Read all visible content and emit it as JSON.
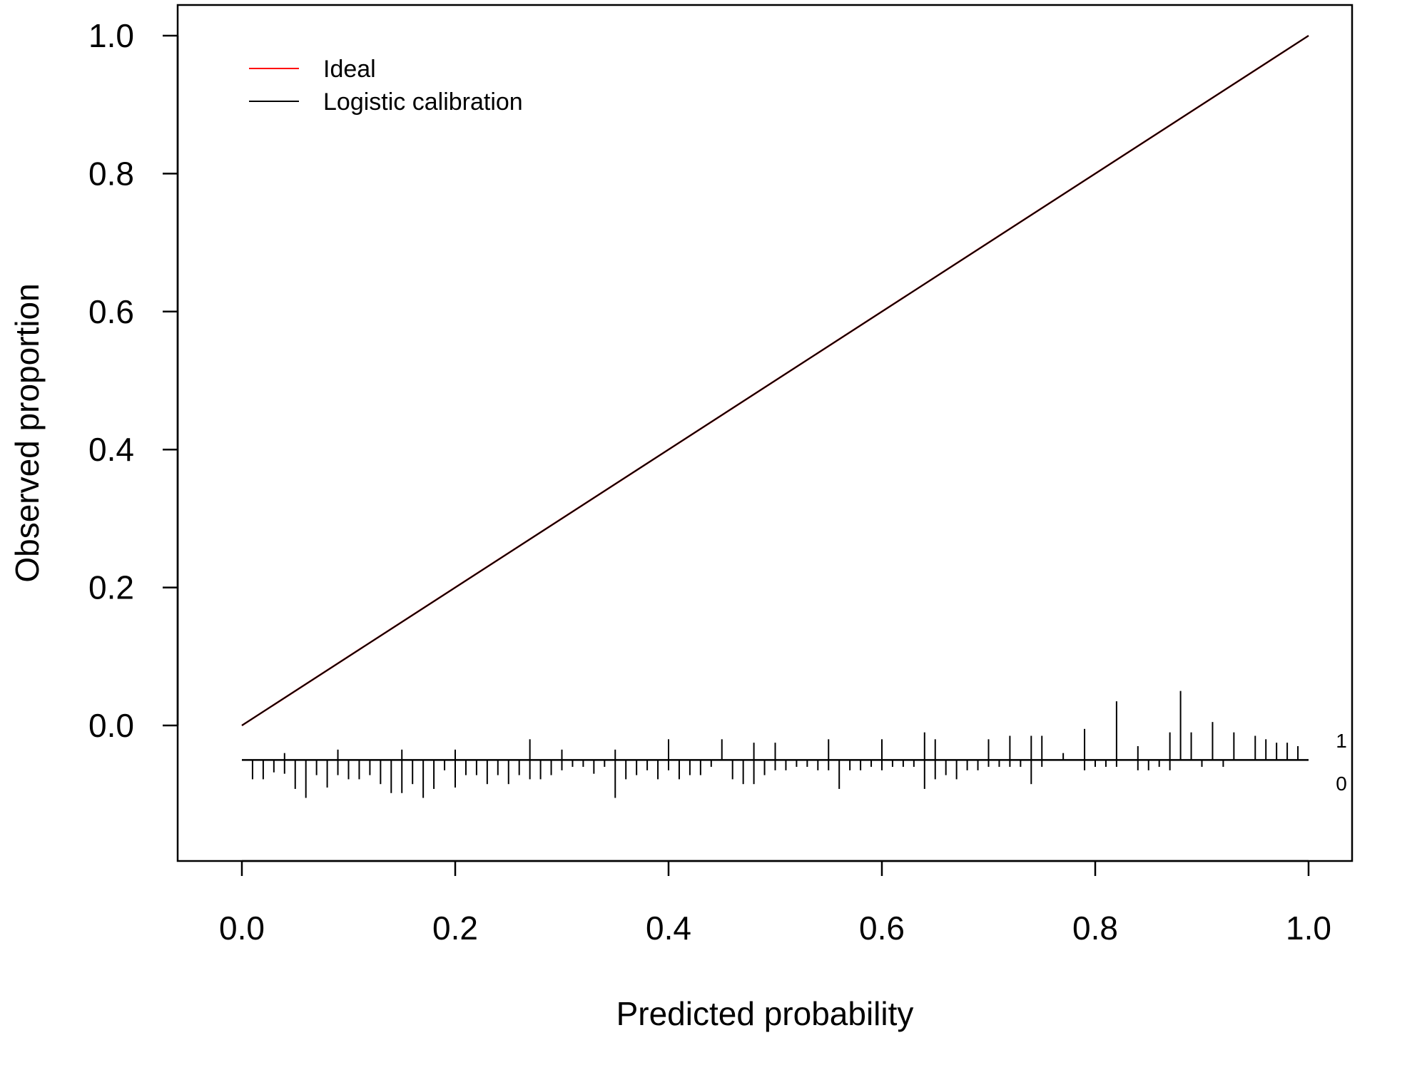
{
  "chart_data": {
    "type": "line",
    "title": "",
    "xlabel": "Predicted probability",
    "ylabel": "Observed proportion",
    "xlim": [
      0.0,
      1.0
    ],
    "ylim": [
      -0.2,
      1.0
    ],
    "x_ticks": [
      "0.0",
      "0.2",
      "0.4",
      "0.6",
      "0.8",
      "1.0"
    ],
    "y_ticks": [
      "0.0",
      "0.2",
      "0.4",
      "0.6",
      "0.8",
      "1.0"
    ],
    "grid": false,
    "legend_position": "top-left",
    "series": [
      {
        "name": "Ideal",
        "color": "#ff0000",
        "x": [
          0,
          1
        ],
        "y": [
          0,
          1
        ]
      },
      {
        "name": "Logistic calibration",
        "color": "#000000",
        "x": [
          0,
          1
        ],
        "y": [
          0,
          1
        ]
      }
    ],
    "rug": {
      "baseline": -0.05,
      "labels": [
        "1",
        "0"
      ],
      "events": [
        {
          "x": 0.27,
          "h": 0.03
        },
        {
          "x": 0.4,
          "h": 0.03
        },
        {
          "x": 0.45,
          "h": 0.03
        },
        {
          "x": 0.64,
          "h": 0.04
        },
        {
          "x": 0.72,
          "h": 0.035
        },
        {
          "x": 0.74,
          "h": 0.035
        },
        {
          "x": 0.75,
          "h": 0.035
        },
        {
          "x": 0.79,
          "h": 0.045
        },
        {
          "x": 0.82,
          "h": 0.085
        },
        {
          "x": 0.87,
          "h": 0.04
        },
        {
          "x": 0.88,
          "h": 0.1
        },
        {
          "x": 0.89,
          "h": 0.04
        },
        {
          "x": 0.91,
          "h": 0.055
        },
        {
          "x": 0.93,
          "h": 0.04
        },
        {
          "x": 0.95,
          "h": 0.035
        },
        {
          "x": 0.96,
          "h": 0.03
        },
        {
          "x": 0.97,
          "h": 0.025
        },
        {
          "x": 0.98,
          "h": 0.025
        },
        {
          "x": 0.99,
          "h": 0.02
        },
        {
          "x": 0.7,
          "h": 0.03
        },
        {
          "x": 0.65,
          "h": 0.03
        },
        {
          "x": 0.6,
          "h": 0.03
        },
        {
          "x": 0.55,
          "h": 0.03
        },
        {
          "x": 0.5,
          "h": 0.025
        },
        {
          "x": 0.48,
          "h": 0.025
        },
        {
          "x": 0.35,
          "h": 0.015
        },
        {
          "x": 0.3,
          "h": 0.015
        },
        {
          "x": 0.2,
          "h": 0.015
        },
        {
          "x": 0.15,
          "h": 0.015
        },
        {
          "x": 0.09,
          "h": 0.015
        },
        {
          "x": 0.04,
          "h": 0.01
        },
        {
          "x": 0.77,
          "h": 0.01
        },
        {
          "x": 0.84,
          "h": 0.02
        }
      ],
      "non_events": [
        {
          "x": 0.01,
          "h": 0.028
        },
        {
          "x": 0.02,
          "h": 0.028
        },
        {
          "x": 0.03,
          "h": 0.018
        },
        {
          "x": 0.04,
          "h": 0.02
        },
        {
          "x": 0.05,
          "h": 0.042
        },
        {
          "x": 0.06,
          "h": 0.055
        },
        {
          "x": 0.07,
          "h": 0.022
        },
        {
          "x": 0.08,
          "h": 0.04
        },
        {
          "x": 0.09,
          "h": 0.022
        },
        {
          "x": 0.1,
          "h": 0.028
        },
        {
          "x": 0.11,
          "h": 0.028
        },
        {
          "x": 0.12,
          "h": 0.022
        },
        {
          "x": 0.13,
          "h": 0.035
        },
        {
          "x": 0.14,
          "h": 0.048
        },
        {
          "x": 0.15,
          "h": 0.048
        },
        {
          "x": 0.16,
          "h": 0.035
        },
        {
          "x": 0.17,
          "h": 0.055
        },
        {
          "x": 0.18,
          "h": 0.042
        },
        {
          "x": 0.19,
          "h": 0.015
        },
        {
          "x": 0.2,
          "h": 0.04
        },
        {
          "x": 0.21,
          "h": 0.022
        },
        {
          "x": 0.22,
          "h": 0.022
        },
        {
          "x": 0.23,
          "h": 0.035
        },
        {
          "x": 0.24,
          "h": 0.022
        },
        {
          "x": 0.25,
          "h": 0.035
        },
        {
          "x": 0.26,
          "h": 0.022
        },
        {
          "x": 0.27,
          "h": 0.028
        },
        {
          "x": 0.28,
          "h": 0.028
        },
        {
          "x": 0.29,
          "h": 0.022
        },
        {
          "x": 0.3,
          "h": 0.015
        },
        {
          "x": 0.31,
          "h": 0.01
        },
        {
          "x": 0.32,
          "h": 0.01
        },
        {
          "x": 0.33,
          "h": 0.02
        },
        {
          "x": 0.34,
          "h": 0.01
        },
        {
          "x": 0.35,
          "h": 0.055
        },
        {
          "x": 0.36,
          "h": 0.028
        },
        {
          "x": 0.37,
          "h": 0.022
        },
        {
          "x": 0.38,
          "h": 0.015
        },
        {
          "x": 0.39,
          "h": 0.028
        },
        {
          "x": 0.4,
          "h": 0.015
        },
        {
          "x": 0.41,
          "h": 0.028
        },
        {
          "x": 0.42,
          "h": 0.022
        },
        {
          "x": 0.43,
          "h": 0.022
        },
        {
          "x": 0.44,
          "h": 0.01
        },
        {
          "x": 0.46,
          "h": 0.028
        },
        {
          "x": 0.47,
          "h": 0.035
        },
        {
          "x": 0.48,
          "h": 0.035
        },
        {
          "x": 0.49,
          "h": 0.022
        },
        {
          "x": 0.5,
          "h": 0.015
        },
        {
          "x": 0.51,
          "h": 0.015
        },
        {
          "x": 0.52,
          "h": 0.01
        },
        {
          "x": 0.53,
          "h": 0.01
        },
        {
          "x": 0.54,
          "h": 0.015
        },
        {
          "x": 0.55,
          "h": 0.015
        },
        {
          "x": 0.56,
          "h": 0.042
        },
        {
          "x": 0.57,
          "h": 0.015
        },
        {
          "x": 0.58,
          "h": 0.015
        },
        {
          "x": 0.59,
          "h": 0.01
        },
        {
          "x": 0.6,
          "h": 0.015
        },
        {
          "x": 0.61,
          "h": 0.01
        },
        {
          "x": 0.62,
          "h": 0.01
        },
        {
          "x": 0.63,
          "h": 0.01
        },
        {
          "x": 0.64,
          "h": 0.042
        },
        {
          "x": 0.65,
          "h": 0.028
        },
        {
          "x": 0.66,
          "h": 0.022
        },
        {
          "x": 0.67,
          "h": 0.028
        },
        {
          "x": 0.68,
          "h": 0.015
        },
        {
          "x": 0.69,
          "h": 0.015
        },
        {
          "x": 0.7,
          "h": 0.01
        },
        {
          "x": 0.71,
          "h": 0.01
        },
        {
          "x": 0.72,
          "h": 0.01
        },
        {
          "x": 0.73,
          "h": 0.01
        },
        {
          "x": 0.74,
          "h": 0.035
        },
        {
          "x": 0.75,
          "h": 0.01
        },
        {
          "x": 0.79,
          "h": 0.015
        },
        {
          "x": 0.8,
          "h": 0.01
        },
        {
          "x": 0.81,
          "h": 0.01
        },
        {
          "x": 0.82,
          "h": 0.01
        },
        {
          "x": 0.84,
          "h": 0.015
        },
        {
          "x": 0.85,
          "h": 0.015
        },
        {
          "x": 0.86,
          "h": 0.01
        },
        {
          "x": 0.87,
          "h": 0.015
        },
        {
          "x": 0.9,
          "h": 0.01
        },
        {
          "x": 0.92,
          "h": 0.01
        }
      ]
    }
  }
}
